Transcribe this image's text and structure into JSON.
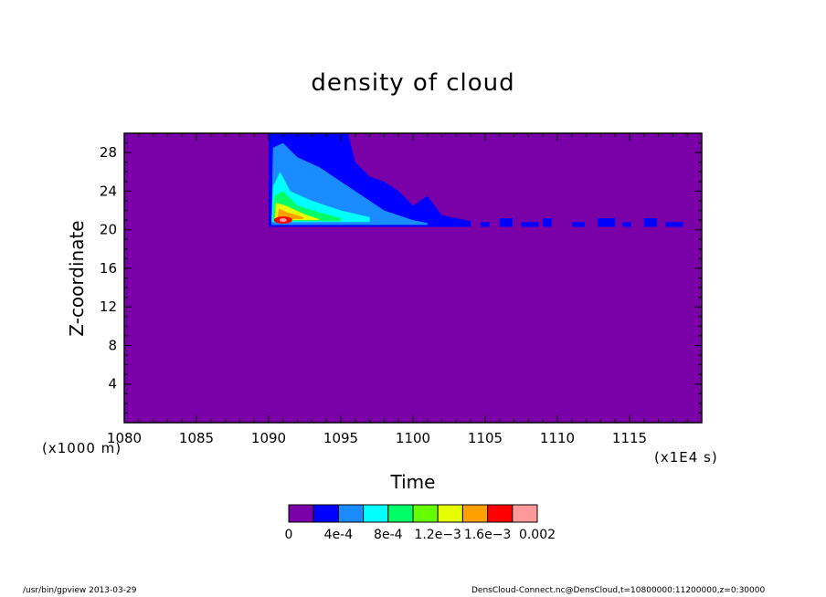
{
  "chart_data": {
    "type": "heatmap",
    "title": "density of cloud",
    "xlabel": "Time",
    "ylabel": "Z-coordinate",
    "x_unit": "(x1E4 s)",
    "y_unit": "(x1000 m)",
    "xlim": [
      1080,
      1120
    ],
    "ylim": [
      0,
      30
    ],
    "x_ticks": [
      "1080",
      "1085",
      "1090",
      "1095",
      "1100",
      "1105",
      "1110",
      "1115"
    ],
    "y_ticks": [
      "4",
      "8",
      "12",
      "16",
      "20",
      "24",
      "28"
    ],
    "colorbar": {
      "levels": [
        "0",
        "4e-4",
        "8e-4",
        "1.2e-3",
        "1.6e-3",
        "0.002"
      ],
      "label_text": [
        "0",
        "4e-4",
        "8e-4",
        "1.2e−3",
        "1.6e−3",
        "0.002"
      ],
      "colors": [
        "#7a00a8",
        "#0000ff",
        "#1a8cff",
        "#00ffff",
        "#00ff66",
        "#66ff00",
        "#e6ff00",
        "#ffa000",
        "#ff0000",
        "#ff9999"
      ]
    },
    "cloud_region": {
      "x_start": 1090,
      "x_end_main": 1104,
      "x_end_patches": 1118,
      "z_base": 20.3,
      "z_top": 30,
      "peak_value": 0.002,
      "peak_location": [
        1091,
        21
      ]
    }
  },
  "footer": {
    "left": "/usr/bin/gpview   2013-03-29",
    "right": "DensCloud-Connect.nc@DensCloud,t=10800000:11200000,z=0:30000"
  }
}
